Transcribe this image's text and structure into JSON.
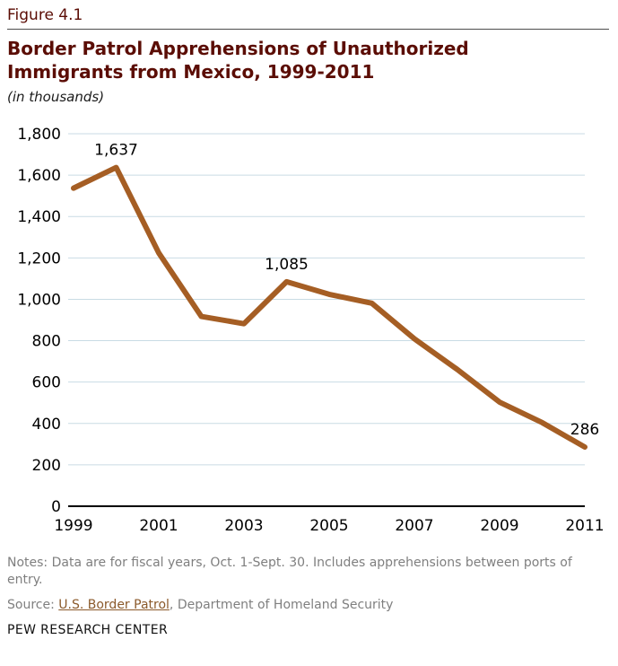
{
  "figure_label": "Figure 4.1",
  "title": "Border Patrol Apprehensions of Unauthorized Immigrants from Mexico, 1999-2011",
  "subtitle": "(in thousands)",
  "chart_data": {
    "type": "line",
    "title": "Border Patrol Apprehensions of Unauthorized Immigrants from Mexico, 1999-2011",
    "subtitle": "(in thousands)",
    "xlabel": "",
    "ylabel": "",
    "x": [
      1999,
      2000,
      2001,
      2002,
      2003,
      2004,
      2005,
      2006,
      2007,
      2008,
      2009,
      2010,
      2011
    ],
    "values": [
      1537,
      1637,
      1224,
      917,
      882,
      1085,
      1024,
      981,
      809,
      662,
      503,
      404,
      286
    ],
    "ylim": [
      0,
      1800
    ],
    "ytick_step": 200,
    "xticks": [
      1999,
      2001,
      2003,
      2005,
      2007,
      2009,
      2011
    ],
    "annotations": [
      {
        "x": 2000,
        "label": "1,637"
      },
      {
        "x": 2004,
        "label": "1,085"
      },
      {
        "x": 2011,
        "label": "286"
      }
    ],
    "grid": true,
    "legend_position": "none",
    "line_color": "#a55e24",
    "grid_color": "#c9dbe4",
    "axis_color": "#000000",
    "tick_label_color": "#000000",
    "annotation_color": "#000000"
  },
  "notes": "Notes: Data are for fiscal years, Oct. 1-Sept. 30. Includes apprehensions between ports of entry.",
  "source": {
    "prefix": "Source: ",
    "link": "U.S. Border Patrol",
    "suffix": ", Department of Homeland Security"
  },
  "footer": "PEW RESEARCH CENTER",
  "colors": {
    "title": "#5b0d05",
    "line": "#a55e24",
    "grid": "#c9dbe4",
    "notes": "#7f7f7f",
    "link": "#8b5a2b"
  }
}
